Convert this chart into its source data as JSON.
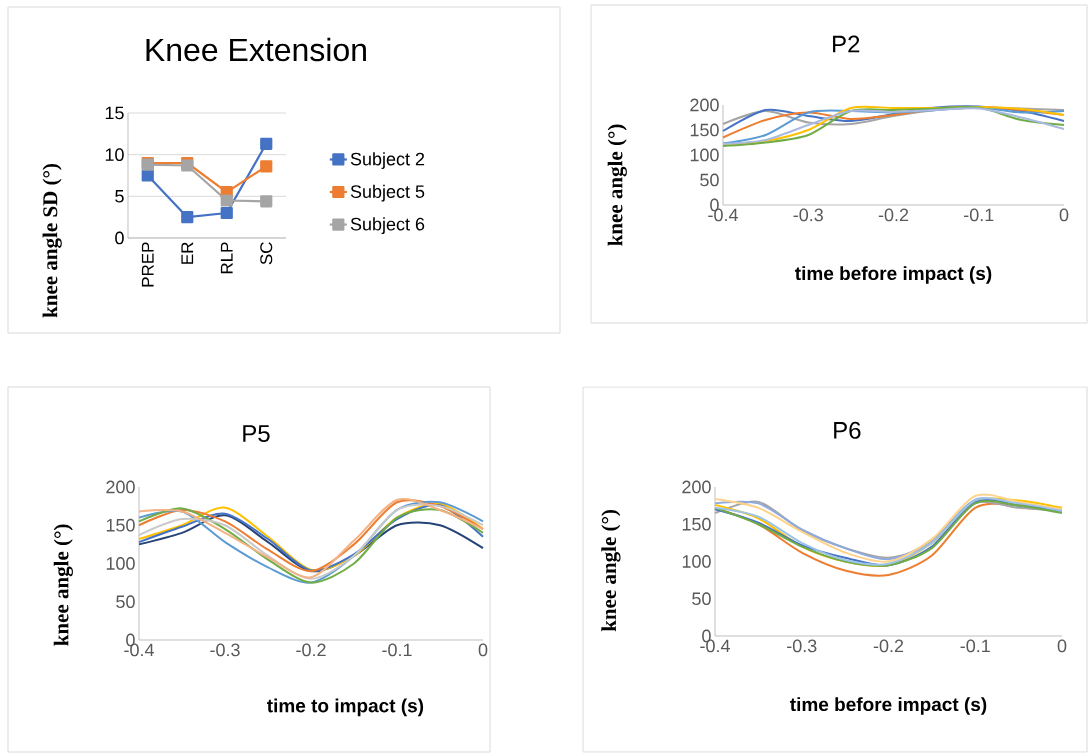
{
  "chart_data": [
    {
      "type": "line",
      "title": "Knee Extension",
      "ylabel": "knee angle SD (°)",
      "categories": [
        "PREP",
        "ER",
        "RLP",
        "SC"
      ],
      "ylim": [
        0,
        15
      ],
      "yticks": [
        0,
        5,
        10,
        15
      ],
      "grid": "y",
      "legend": "right",
      "marker": "square",
      "series": [
        {
          "name": "Subject 2",
          "color": "#4472c4",
          "values": [
            7.5,
            2.5,
            3,
            11.3
          ]
        },
        {
          "name": "Subject 5",
          "color": "#ed7d31",
          "values": [
            9,
            9,
            5.5,
            8.6
          ]
        },
        {
          "name": "Subject 6",
          "color": "#a5a5a5",
          "values": [
            8.8,
            8.7,
            4.5,
            4.4
          ]
        }
      ]
    },
    {
      "type": "line",
      "title": "P2",
      "xlabel": "time before impact (s)",
      "ylabel": "knee angle (°)",
      "x": [
        -0.4,
        -0.35,
        -0.3,
        -0.25,
        -0.2,
        -0.15,
        -0.1,
        -0.05,
        0
      ],
      "xlim": [
        -0.4,
        0
      ],
      "xticks": [
        -0.4,
        -0.3,
        -0.2,
        -0.1,
        0
      ],
      "ylim": [
        0,
        200
      ],
      "yticks": [
        0,
        50,
        100,
        150,
        200
      ],
      "series": [
        {
          "color": "#a5a5a5",
          "values": [
            162,
            188,
            165,
            162,
            178,
            190,
            195,
            193,
            190
          ]
        },
        {
          "color": "#4472c4",
          "values": [
            148,
            190,
            178,
            168,
            182,
            195,
            197,
            188,
            168
          ]
        },
        {
          "color": "#ed7d31",
          "values": [
            135,
            170,
            185,
            172,
            180,
            192,
            196,
            190,
            180
          ]
        },
        {
          "color": "#5b9bd5",
          "values": [
            123,
            140,
            185,
            188,
            185,
            190,
            195,
            185,
            188
          ]
        },
        {
          "color": "#ffc000",
          "values": [
            120,
            128,
            150,
            194,
            194,
            194,
            196,
            192,
            180
          ]
        },
        {
          "color": "#70ad47",
          "values": [
            118,
            125,
            140,
            188,
            190,
            193,
            195,
            170,
            160
          ]
        },
        {
          "color": "#a9b9e0",
          "values": [
            122,
            130,
            160,
            188,
            186,
            190,
            193,
            175,
            152
          ]
        }
      ]
    },
    {
      "type": "line",
      "title": "P5",
      "xlabel": "time to impact (s)",
      "ylabel": "knee angle (°)",
      "x": [
        -0.4,
        -0.35,
        -0.3,
        -0.25,
        -0.2,
        -0.15,
        -0.1,
        -0.05,
        0
      ],
      "xlim": [
        -0.4,
        0
      ],
      "xticks": [
        -0.4,
        -0.3,
        -0.2,
        -0.1,
        0
      ],
      "ylim": [
        0,
        200
      ],
      "yticks": [
        0,
        50,
        100,
        150,
        200
      ],
      "series": [
        {
          "color": "#264478",
          "values": [
            125,
            140,
            163,
            128,
            90,
            110,
            150,
            150,
            120
          ]
        },
        {
          "color": "#ffc000",
          "values": [
            132,
            150,
            173,
            135,
            92,
            110,
            160,
            178,
            145
          ]
        },
        {
          "color": "#4472c4",
          "values": [
            128,
            148,
            165,
            132,
            91,
            112,
            158,
            176,
            135
          ]
        },
        {
          "color": "#ed7d31",
          "values": [
            150,
            170,
            155,
            118,
            90,
            125,
            180,
            175,
            145
          ]
        },
        {
          "color": "#5b9bd5",
          "values": [
            160,
            168,
            128,
            95,
            75,
            110,
            170,
            180,
            155
          ]
        },
        {
          "color": "#70ad47",
          "values": [
            155,
            172,
            145,
            105,
            75,
            100,
            160,
            170,
            140
          ]
        },
        {
          "color": "#c9c9c9",
          "values": [
            137,
            158,
            150,
            110,
            80,
            110,
            170,
            175,
            150
          ]
        },
        {
          "color": "#f4b183",
          "values": [
            168,
            168,
            140,
            108,
            82,
            130,
            183,
            170,
            145
          ]
        }
      ]
    },
    {
      "type": "line",
      "title": "P6",
      "xlabel": "time before impact (s)",
      "ylabel": "knee angle (°)",
      "x": [
        -0.4,
        -0.35,
        -0.3,
        -0.25,
        -0.2,
        -0.15,
        -0.1,
        -0.05,
        0
      ],
      "xlim": [
        -0.4,
        0
      ],
      "xticks": [
        -0.4,
        -0.3,
        -0.2,
        -0.1,
        0
      ],
      "ylim": [
        0,
        200
      ],
      "yticks": [
        0,
        50,
        100,
        150,
        200
      ],
      "series": [
        {
          "color": "#ed7d31",
          "values": [
            172,
            150,
            112,
            88,
            82,
            108,
            172,
            176,
            170
          ]
        },
        {
          "color": "#a5a5a5",
          "values": [
            165,
            180,
            142,
            118,
            105,
            125,
            178,
            172,
            168
          ]
        },
        {
          "color": "#8faadc",
          "values": [
            178,
            178,
            143,
            118,
            103,
            128,
            183,
            175,
            168
          ]
        },
        {
          "color": "#ffc000",
          "values": [
            176,
            158,
            120,
            100,
            95,
            125,
            180,
            182,
            172
          ]
        },
        {
          "color": "#4472c4",
          "values": [
            170,
            152,
            122,
            105,
            95,
            120,
            180,
            175,
            168
          ]
        },
        {
          "color": "#70ad47",
          "values": [
            172,
            150,
            120,
            100,
            95,
            118,
            178,
            175,
            165
          ]
        },
        {
          "color": "#ffd28a",
          "values": [
            184,
            172,
            140,
            112,
            100,
            130,
            188,
            180,
            170
          ]
        },
        {
          "color": "#9dc3e6",
          "values": [
            172,
            160,
            125,
            102,
            97,
            125,
            182,
            178,
            168
          ]
        }
      ]
    }
  ]
}
